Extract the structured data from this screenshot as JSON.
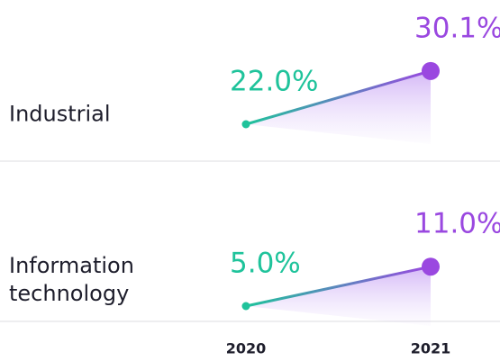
{
  "chart_data": {
    "type": "line",
    "categories": [
      "2020",
      "2021"
    ],
    "point_colors": [
      "#1fc39b",
      "#9a48e0"
    ],
    "series": [
      {
        "name": "Industrial",
        "values": [
          22.0,
          30.1
        ],
        "value_labels": [
          "22.0%",
          "30.1%"
        ]
      },
      {
        "name": "Information technology",
        "values": [
          5.0,
          11.0
        ],
        "value_labels": [
          "5.0%",
          "11.0%"
        ]
      }
    ]
  }
}
